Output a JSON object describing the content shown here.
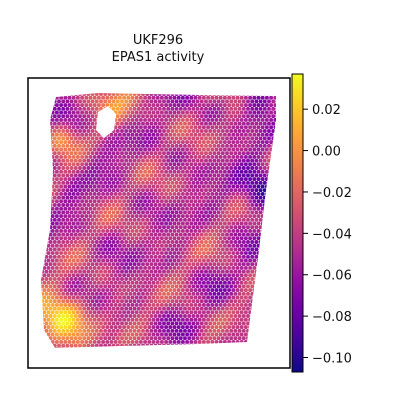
{
  "chart_data": {
    "type": "heatmap",
    "title_lines": [
      "UKF296",
      "EPAS1 activity"
    ],
    "colormap": "plasma",
    "colorbar": {
      "vmin": -0.107,
      "vmax": 0.037,
      "ticks": [
        {
          "value": 0.02,
          "label": "0.02"
        },
        {
          "value": 0.0,
          "label": "0.00"
        },
        {
          "value": -0.02,
          "label": "−0.02"
        },
        {
          "value": -0.04,
          "label": "−0.04"
        },
        {
          "value": -0.06,
          "label": "−0.06"
        },
        {
          "value": -0.08,
          "label": "−0.08"
        },
        {
          "value": -0.1,
          "label": "−0.10"
        }
      ]
    },
    "xlabel": "",
    "ylabel": "",
    "grid": false,
    "legend": "colorbar-right",
    "observed_range": [
      -0.107,
      0.035
    ],
    "dominant_range": [
      -0.07,
      -0.02
    ]
  }
}
